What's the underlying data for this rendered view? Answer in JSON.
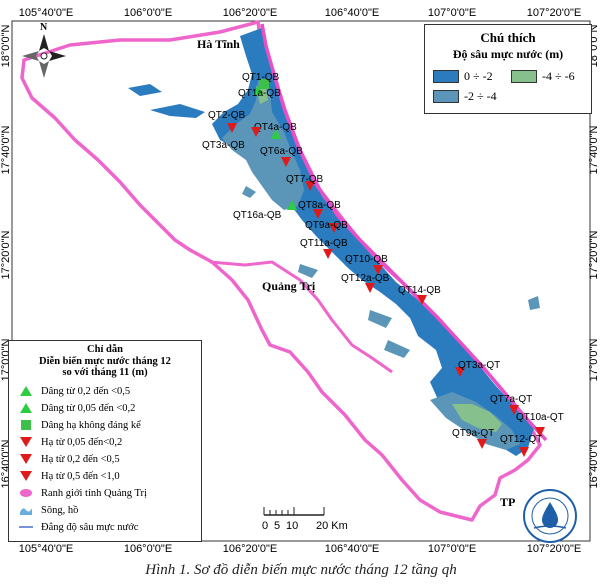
{
  "caption": "Hình 1. Sơ đồ diễn biến mực nước tháng 12 tầng qh",
  "axes": {
    "top_lon": [
      "105°40'0\"E",
      "106°0'0\"E",
      "106°20'0\"E",
      "106°40'0\"E",
      "107°0'0\"E",
      "107°20'0\"E"
    ],
    "bottom_lon": [
      "105°40'0\"E",
      "106°0'0\"E",
      "106°20'0\"E",
      "106°40'0\"E",
      "107°0'0\"E",
      "107°20'0\"E"
    ],
    "left_lat": [
      "18°0'0\"N",
      "17°40'0\"N",
      "17°20'0\"N",
      "17°0'0\"N",
      "16°40'0\"N"
    ],
    "right_lat": [
      "18°0'0\"N",
      "17°40'0\"N",
      "17°20'0\"N",
      "17°0'0\"N",
      "16°40'0\"N"
    ]
  },
  "regions": {
    "ha_tinh": "Hà Tĩnh",
    "quang_tri": "Quảng Trị",
    "tp": "TP"
  },
  "north_arrow": "N",
  "legend": {
    "title": "Chú thích",
    "subtitle": "Độ sâu mực nước (m)",
    "items": [
      {
        "label": "0 ÷ -2",
        "color": "#2b7bbf"
      },
      {
        "label": "-4 ÷ -6",
        "color": "#86c08d"
      },
      {
        "label": "-2 ÷ -4",
        "color": "#5b96b8"
      }
    ]
  },
  "guide": {
    "title": "Chỉ dẫn",
    "subtitle": "Diễn biến mực nước tháng 12",
    "subtitle2": "so với tháng 11 (m)",
    "items": [
      {
        "label": "Dâng từ 0,2 đến <0,5",
        "symbol": "triangle-up-green"
      },
      {
        "label": "Dâng từ 0,05 đến <0,2",
        "symbol": "triangle-up-green"
      },
      {
        "label": "Dâng hạ không đáng kể",
        "symbol": "square-green"
      },
      {
        "label": "Hạ từ 0,05 đến<0,2",
        "symbol": "triangle-down-red"
      },
      {
        "label": "Hạ từ 0,2 đến <0,5",
        "symbol": "triangle-down-red"
      },
      {
        "label": "Hạ từ 0,5 đến <1,0",
        "symbol": "triangle-down-red"
      },
      {
        "label": "Ranh giới tỉnh Quảng Trị",
        "symbol": "boundary-pink"
      },
      {
        "label": "Sông, hồ",
        "symbol": "water-blue"
      },
      {
        "label": "Đẳng độ sâu mực nước",
        "symbol": "contour-line"
      }
    ]
  },
  "scale": {
    "labels": [
      "0",
      "5",
      "10",
      "20 Km"
    ]
  },
  "wells": [
    {
      "label": "QT1a-QB",
      "status": "up-small"
    },
    {
      "label": "QT1-QB",
      "status": "stable"
    },
    {
      "label": "QT2-QB",
      "status": "down"
    },
    {
      "label": "QT4a-QB",
      "status": "up-small"
    },
    {
      "label": "QT3a-QB",
      "status": "down"
    },
    {
      "label": "QT6a-QB",
      "status": "down"
    },
    {
      "label": "QT7-QB",
      "status": "down"
    },
    {
      "label": "QT16a-QB",
      "status": "up-small"
    },
    {
      "label": "QT8a-QB",
      "status": "down"
    },
    {
      "label": "QT9a-QB",
      "status": "down"
    },
    {
      "label": "QT11a-QB",
      "status": "down"
    },
    {
      "label": "QT10-QB",
      "status": "down"
    },
    {
      "label": "QT12a-QB",
      "status": "down"
    },
    {
      "label": "QT14-QB",
      "status": "down"
    },
    {
      "label": "QT3a-QT",
      "status": "down"
    },
    {
      "label": "QT7a-QT",
      "status": "down"
    },
    {
      "label": "QT10a-QT",
      "status": "down"
    },
    {
      "label": "QT9a-QT",
      "status": "down"
    },
    {
      "label": "QT12-QT",
      "status": "down"
    }
  ],
  "colors": {
    "boundary": "#ee66cc",
    "coast": "#e84fc8",
    "down": "#e01a1a",
    "up": "#2ecc40",
    "square": "#3cc04a",
    "frame": "#333333"
  }
}
